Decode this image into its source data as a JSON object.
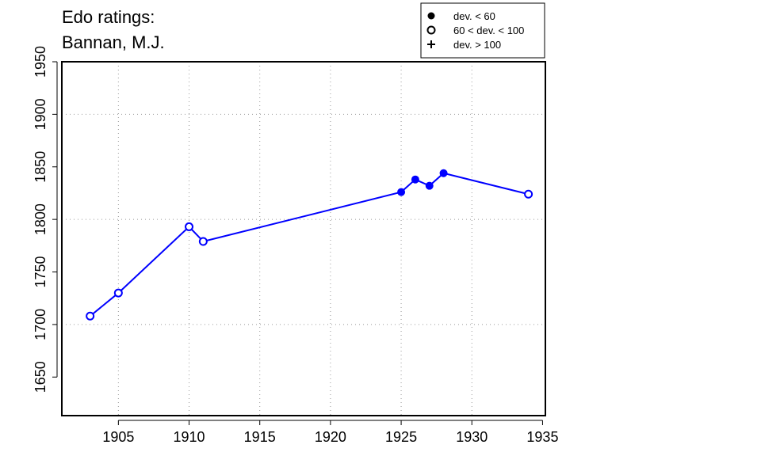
{
  "chart_data": {
    "type": "line",
    "title_lines": [
      "Edo ratings:",
      "Bannan, M.J."
    ],
    "xlabel": "",
    "ylabel": "",
    "xlim": [
      1901.0,
      1935.2
    ],
    "ylim": [
      1613.3,
      1950.0
    ],
    "x_ticks": [
      1905,
      1910,
      1915,
      1920,
      1925,
      1930,
      1935
    ],
    "y_ticks": [
      1650,
      1700,
      1750,
      1800,
      1850,
      1900,
      1950
    ],
    "grid_x": [
      1905,
      1910,
      1915,
      1920,
      1925,
      1930
    ],
    "grid_y": [
      1700,
      1800,
      1900
    ],
    "grid": true,
    "series_color": "#0000ff",
    "legend_position": "top-right",
    "legend": [
      {
        "marker": "filled-circle",
        "label": "dev. < 60"
      },
      {
        "marker": "open-circle",
        "label": "60 < dev. < 100"
      },
      {
        "marker": "plus",
        "label": "dev. > 100"
      }
    ],
    "series": [
      {
        "points": [
          {
            "x": 1903,
            "y": 1708,
            "marker": "open-circle"
          },
          {
            "x": 1905,
            "y": 1730,
            "marker": "open-circle"
          },
          {
            "x": 1910,
            "y": 1793,
            "marker": "open-circle"
          },
          {
            "x": 1911,
            "y": 1779,
            "marker": "open-circle"
          },
          {
            "x": 1925,
            "y": 1826,
            "marker": "filled-circle"
          },
          {
            "x": 1926,
            "y": 1838,
            "marker": "filled-circle"
          },
          {
            "x": 1927,
            "y": 1832,
            "marker": "filled-circle"
          },
          {
            "x": 1928,
            "y": 1844,
            "marker": "filled-circle"
          },
          {
            "x": 1934,
            "y": 1824,
            "marker": "open-circle"
          }
        ]
      }
    ]
  }
}
